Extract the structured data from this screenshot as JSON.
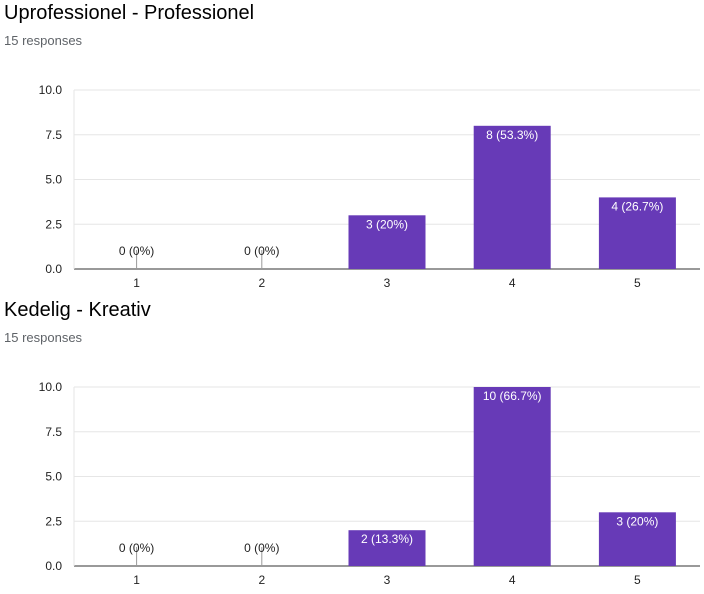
{
  "colors": {
    "bar": "#673ab7",
    "grid": "#e6e6e6",
    "axis": "#333333",
    "stub": "#999999"
  },
  "chart_data": [
    {
      "type": "bar",
      "title": "Uprofessionel - Professionel",
      "subtitle": "15 responses",
      "categories": [
        "1",
        "2",
        "3",
        "4",
        "5"
      ],
      "values": [
        0,
        0,
        3,
        8,
        4
      ],
      "data_labels": [
        "0 (0%)",
        "0 (0%)",
        "3 (20%)",
        "8 (53.3%)",
        "4 (26.7%)"
      ],
      "yticks": [
        "0.0",
        "2.5",
        "5.0",
        "7.5",
        "10.0"
      ],
      "ylim": [
        0,
        10
      ],
      "grid": true
    },
    {
      "type": "bar",
      "title": "Kedelig - Kreativ",
      "subtitle": "15 responses",
      "categories": [
        "1",
        "2",
        "3",
        "4",
        "5"
      ],
      "values": [
        0,
        0,
        2,
        10,
        3
      ],
      "data_labels": [
        "0 (0%)",
        "0 (0%)",
        "2 (13.3%)",
        "10 (66.7%)",
        "3 (20%)"
      ],
      "yticks": [
        "0.0",
        "2.5",
        "5.0",
        "7.5",
        "10.0"
      ],
      "ylim": [
        0,
        10
      ],
      "grid": true
    }
  ]
}
